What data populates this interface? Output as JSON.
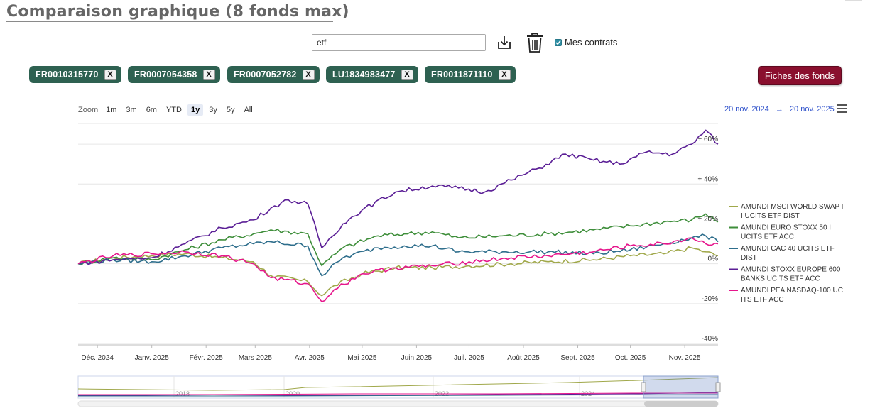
{
  "header": {
    "title": "Comparaison graphique (8 fonds max)"
  },
  "search": {
    "value": "etf"
  },
  "toolbar": {
    "download_icon": "download-icon",
    "trash_icon": "trash-icon"
  },
  "mes_contrats": {
    "label": "Mes contrats",
    "checked": true
  },
  "chips": [
    {
      "code": "FR0010315770",
      "remove": "X"
    },
    {
      "code": "FR0007054358",
      "remove": "X"
    },
    {
      "code": "FR0007052782",
      "remove": "X"
    },
    {
      "code": "LU1834983477",
      "remove": "X"
    },
    {
      "code": "FR0011871110",
      "remove": "X"
    }
  ],
  "fiches_button": {
    "label": "Fiches des fonds"
  },
  "zoom": {
    "label": "Zoom",
    "options": [
      "1m",
      "3m",
      "6m",
      "YTD",
      "1y",
      "3y",
      "5y",
      "All"
    ],
    "selected": "1y"
  },
  "range": {
    "from": "20 nov. 2024",
    "arrow": "→",
    "to": "20 nov. 2025"
  },
  "chart_data": {
    "type": "line",
    "x_start": "2024-11-20",
    "x_end": "2025-11-20",
    "ylim": [
      -40,
      70
    ],
    "y_ticks": [
      -40,
      -20,
      0,
      20,
      40,
      60
    ],
    "y_tick_labels": [
      "-40%",
      "-20%",
      "0%",
      "+ 20%",
      "+ 40%",
      "+ 60%"
    ],
    "x_tick_labels": [
      "Déc. 2024",
      "Janv. 2025",
      "Févr. 2025",
      "Mars 2025",
      "Avr. 2025",
      "Mai 2025",
      "Juin 2025",
      "Juil. 2025",
      "Août 2025",
      "Sept. 2025",
      "Oct. 2025",
      "Nov. 2025"
    ],
    "x_tick_dates": [
      "2024-12-01",
      "2025-01-01",
      "2025-02-01",
      "2025-03-01",
      "2025-04-01",
      "2025-05-01",
      "2025-06-01",
      "2025-07-01",
      "2025-08-01",
      "2025-09-01",
      "2025-10-01",
      "2025-11-01"
    ],
    "legend_position": "right",
    "series": [
      {
        "name": "AMUNDI MSCI WORLD SWAP II UCITS ETF DIST",
        "color": "#a0a84a",
        "points": [
          [
            "2024-11-20",
            0
          ],
          [
            "2024-12-10",
            3
          ],
          [
            "2025-01-01",
            4
          ],
          [
            "2025-01-20",
            5
          ],
          [
            "2025-02-10",
            3
          ],
          [
            "2025-02-28",
            1
          ],
          [
            "2025-03-10",
            -6
          ],
          [
            "2025-03-31",
            -9
          ],
          [
            "2025-04-08",
            -16
          ],
          [
            "2025-04-15",
            -11
          ],
          [
            "2025-05-01",
            -5
          ],
          [
            "2025-05-20",
            -2
          ],
          [
            "2025-06-10",
            -2
          ],
          [
            "2025-07-01",
            -1
          ],
          [
            "2025-07-25",
            0
          ],
          [
            "2025-08-15",
            1
          ],
          [
            "2025-09-10",
            2
          ],
          [
            "2025-10-01",
            4
          ],
          [
            "2025-10-20",
            5
          ],
          [
            "2025-11-05",
            8
          ],
          [
            "2025-11-13",
            6
          ],
          [
            "2025-11-20",
            4
          ]
        ]
      },
      {
        "name": "AMUNDI EURO STOXX 50 II UCITS ETF ACC",
        "color": "#3e8e3a",
        "points": [
          [
            "2024-11-20",
            0
          ],
          [
            "2024-12-10",
            3
          ],
          [
            "2025-01-01",
            2
          ],
          [
            "2025-01-20",
            7
          ],
          [
            "2025-02-10",
            12
          ],
          [
            "2025-02-28",
            15
          ],
          [
            "2025-03-10",
            17
          ],
          [
            "2025-03-31",
            15
          ],
          [
            "2025-04-08",
            -1
          ],
          [
            "2025-04-20",
            8
          ],
          [
            "2025-05-10",
            14
          ],
          [
            "2025-05-25",
            15
          ],
          [
            "2025-06-10",
            16
          ],
          [
            "2025-06-25",
            13
          ],
          [
            "2025-07-20",
            14
          ],
          [
            "2025-08-15",
            15
          ],
          [
            "2025-09-10",
            17
          ],
          [
            "2025-10-01",
            19
          ],
          [
            "2025-10-20",
            21
          ],
          [
            "2025-11-05",
            22
          ],
          [
            "2025-11-13",
            25
          ],
          [
            "2025-11-20",
            21
          ]
        ]
      },
      {
        "name": "AMUNDI CAC 40 UCITS ETF DIST",
        "color": "#2e6e8c",
        "points": [
          [
            "2024-11-20",
            0
          ],
          [
            "2024-12-10",
            2
          ],
          [
            "2025-01-01",
            1
          ],
          [
            "2025-01-20",
            4
          ],
          [
            "2025-02-10",
            8
          ],
          [
            "2025-02-28",
            10
          ],
          [
            "2025-03-10",
            11
          ],
          [
            "2025-03-31",
            9
          ],
          [
            "2025-04-08",
            -6
          ],
          [
            "2025-04-20",
            3
          ],
          [
            "2025-05-10",
            8
          ],
          [
            "2025-05-25",
            9
          ],
          [
            "2025-06-10",
            9
          ],
          [
            "2025-06-25",
            6
          ],
          [
            "2025-07-20",
            6
          ],
          [
            "2025-08-15",
            6
          ],
          [
            "2025-09-10",
            5
          ],
          [
            "2025-10-01",
            7
          ],
          [
            "2025-10-20",
            10
          ],
          [
            "2025-11-05",
            13
          ],
          [
            "2025-11-13",
            14
          ],
          [
            "2025-11-20",
            11
          ]
        ]
      },
      {
        "name": "AMUNDI STOXX EUROPE 600 BANKS UCITS ETF ACC",
        "color": "#5b1f96",
        "points": [
          [
            "2024-11-20",
            0
          ],
          [
            "2024-12-10",
            2
          ],
          [
            "2025-01-01",
            3
          ],
          [
            "2025-01-20",
            10
          ],
          [
            "2025-02-10",
            18
          ],
          [
            "2025-02-28",
            22
          ],
          [
            "2025-03-10",
            28
          ],
          [
            "2025-03-20",
            32
          ],
          [
            "2025-03-31",
            30
          ],
          [
            "2025-04-08",
            8
          ],
          [
            "2025-04-20",
            20
          ],
          [
            "2025-05-01",
            27
          ],
          [
            "2025-05-20",
            36
          ],
          [
            "2025-06-10",
            39
          ],
          [
            "2025-06-25",
            38
          ],
          [
            "2025-07-10",
            36
          ],
          [
            "2025-07-25",
            42
          ],
          [
            "2025-08-10",
            48
          ],
          [
            "2025-08-25",
            55
          ],
          [
            "2025-09-10",
            52
          ],
          [
            "2025-09-25",
            50
          ],
          [
            "2025-10-10",
            56
          ],
          [
            "2025-10-25",
            55
          ],
          [
            "2025-11-05",
            60
          ],
          [
            "2025-11-13",
            67
          ],
          [
            "2025-11-20",
            60
          ]
        ]
      },
      {
        "name": "AMUNDI PEA NASDAQ-100 UCITS ETF ACC",
        "color": "#e6168c",
        "points": [
          [
            "2024-11-20",
            0
          ],
          [
            "2024-12-10",
            4
          ],
          [
            "2025-01-01",
            5
          ],
          [
            "2025-01-20",
            6
          ],
          [
            "2025-02-10",
            4
          ],
          [
            "2025-02-28",
            0
          ],
          [
            "2025-03-10",
            -7
          ],
          [
            "2025-03-31",
            -10
          ],
          [
            "2025-04-08",
            -19
          ],
          [
            "2025-04-15",
            -13
          ],
          [
            "2025-05-01",
            -5
          ],
          [
            "2025-05-20",
            -2
          ],
          [
            "2025-06-10",
            -1
          ],
          [
            "2025-07-01",
            1
          ],
          [
            "2025-07-25",
            3
          ],
          [
            "2025-08-15",
            4
          ],
          [
            "2025-09-10",
            6
          ],
          [
            "2025-10-01",
            9
          ],
          [
            "2025-10-20",
            10
          ],
          [
            "2025-11-05",
            13
          ],
          [
            "2025-11-13",
            10
          ],
          [
            "2025-11-20",
            10
          ]
        ]
      }
    ],
    "navigator": {
      "x_labels": [
        "2018",
        "2020",
        "2022",
        "2024"
      ]
    }
  }
}
